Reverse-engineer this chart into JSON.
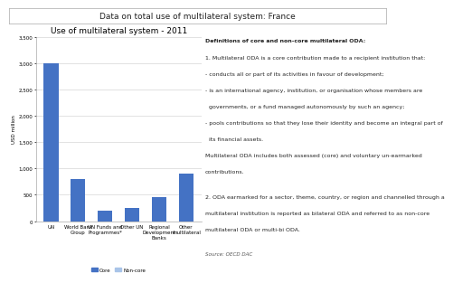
{
  "title": "Data on total use of multilateral system: France",
  "chart_title": "Use of multilateral system - 2011",
  "categories": [
    "UN",
    "World Bank\nGroup",
    "UN Funds and\nProgrammes*",
    "Other UN",
    "Regional\nDevelopment\nBanks",
    "Other\nmultilateral"
  ],
  "core_values": [
    3000,
    800,
    200,
    250,
    450,
    900
  ],
  "noncore_values": [
    0,
    0,
    0,
    0,
    0,
    0
  ],
  "bar_color_core": "#4472C4",
  "bar_color_noncore": "#A9C4E8",
  "ylabel": "USD million",
  "ylim": [
    0,
    3500
  ],
  "yticks": [
    0,
    500,
    1000,
    1500,
    2000,
    2500,
    3000,
    3500
  ],
  "ytick_labels": [
    "0",
    "500",
    "1,000",
    "1,500",
    "2,000",
    "2,500",
    "3,000",
    "3,500"
  ],
  "legend_core": "Core",
  "legend_noncore": "Non-core",
  "definitions_title": "Definitions of core and non-core multilateral ODA:",
  "def1_line1": "1. Multilateral ODA is a core contribution made to a recipient institution that:",
  "def1_line2": "- conducts all or part of its activities in favour of development;",
  "def1_line3": "- is an international agency, institution, or organisation whose members are",
  "def1_line4": "  governments, or a fund managed autonomously by such an agency;",
  "def1_line5": "- pools contributions so that they lose their identity and become an integral part of",
  "def1_line6": "  its financial assets.",
  "def1_line7": "Multilateral ODA includes both assessed (core) and voluntary un-earmarked",
  "def1_line8": "contributions.",
  "def2_line1": "2. ODA earmarked for a sector, theme, country, or region and channelled through a",
  "def2_line2": "multilateral institution is reported as bilateral ODA and referred to as non-core",
  "def2_line3": "multilateral ODA or multi-bi ODA.",
  "source": "Source: OECD DAC",
  "background_color": "#FFFFFF",
  "grid_color": "#CCCCCC",
  "title_box_color": "#F2F2F2"
}
